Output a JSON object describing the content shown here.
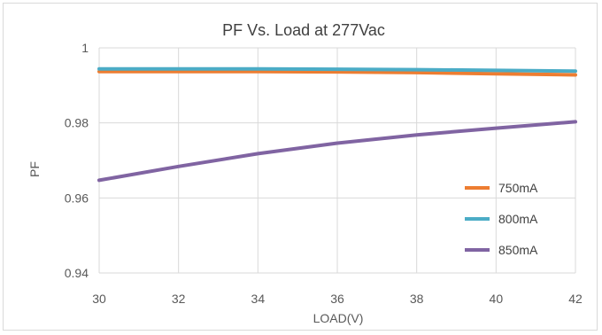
{
  "chart_data": {
    "type": "line",
    "title": "PF Vs. Load at 277Vac",
    "xlabel": "LOAD(V)",
    "ylabel": "PF",
    "xlim": [
      30,
      42
    ],
    "ylim": [
      0.94,
      1.0
    ],
    "x_ticks": [
      "30",
      "32",
      "34",
      "36",
      "38",
      "40",
      "42"
    ],
    "y_ticks": [
      "0.94",
      "0.96",
      "0.98",
      "1"
    ],
    "grid": true,
    "legend_position": "bottom-right",
    "series": [
      {
        "name": "750mA",
        "color": "#ED7D31",
        "x": [
          30,
          32,
          34,
          36,
          38,
          40,
          42
        ],
        "y": [
          0.9937,
          0.9937,
          0.9937,
          0.9936,
          0.9934,
          0.9931,
          0.9928
        ]
      },
      {
        "name": "800mA",
        "color": "#4BACC6",
        "x": [
          30,
          32,
          34,
          36,
          38,
          40,
          42
        ],
        "y": [
          0.9944,
          0.9944,
          0.9944,
          0.9943,
          0.9942,
          0.994,
          0.9938
        ]
      },
      {
        "name": "850mA",
        "color": "#8064A2",
        "x": [
          30,
          32,
          34,
          36,
          38,
          40,
          42
        ],
        "y": [
          0.9647,
          0.9684,
          0.9718,
          0.9746,
          0.9768,
          0.9786,
          0.9803
        ]
      }
    ]
  }
}
